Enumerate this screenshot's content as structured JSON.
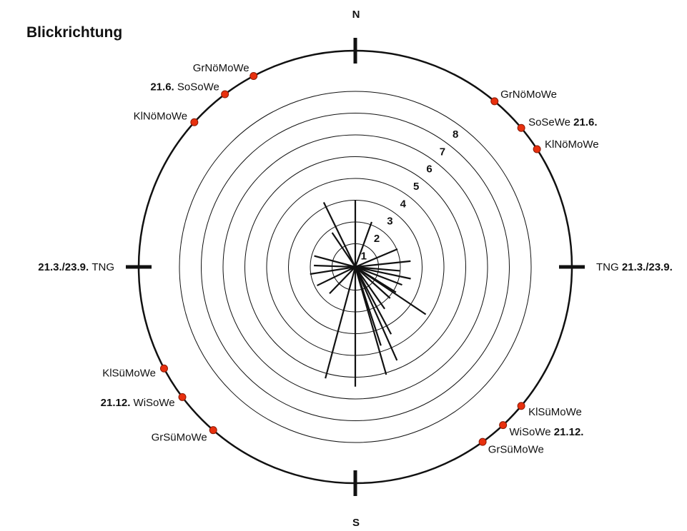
{
  "chart_data": {
    "type": "polar-rose",
    "title": "Blickrichtung",
    "compass": {
      "north": "N",
      "south": "S"
    },
    "ring_labels": [
      "1",
      "2",
      "3",
      "4",
      "5",
      "6",
      "7",
      "8"
    ],
    "rmax": 8,
    "rays": [
      {
        "bearing": 0,
        "length": 3.05
      },
      {
        "bearing": 20,
        "length": 2.2
      },
      {
        "bearing": 67,
        "length": 2.1
      },
      {
        "bearing": 84,
        "length": 2.55
      },
      {
        "bearing": 95,
        "length": 2.05
      },
      {
        "bearing": 102,
        "length": 2.6
      },
      {
        "bearing": 111,
        "length": 2.3
      },
      {
        "bearing": 122,
        "length": 2.2
      },
      {
        "bearing": 124,
        "length": 3.9
      },
      {
        "bearing": 132,
        "length": 2.15
      },
      {
        "bearing": 145,
        "length": 2.35
      },
      {
        "bearing": 152,
        "length": 3.5
      },
      {
        "bearing": 156,
        "length": 4.7
      },
      {
        "bearing": 162,
        "length": 3.8
      },
      {
        "bearing": 164,
        "length": 5.15
      },
      {
        "bearing": 180,
        "length": 5.5
      },
      {
        "bearing": 195,
        "length": 5.3
      },
      {
        "bearing": 224,
        "length": 1.7
      },
      {
        "bearing": 244,
        "length": 1.95
      },
      {
        "bearing": 261,
        "length": 2.1
      },
      {
        "bearing": 272,
        "length": 1.9
      },
      {
        "bearing": 285,
        "length": 1.95
      },
      {
        "bearing": 326,
        "length": 1.9
      },
      {
        "bearing": 334,
        "length": 3.3
      }
    ],
    "markers": [
      {
        "label": "TNG",
        "date": "21.3./23.9.",
        "bearing": 90,
        "date_side": "after"
      },
      {
        "label": "TNG",
        "date": "21.3./23.9.",
        "bearing": 270,
        "date_side": "before"
      },
      {
        "label": "GrNöMoWe",
        "bearing": 40,
        "dot": true
      },
      {
        "label": "SoSeWe",
        "date": "21.6.",
        "bearing": 50,
        "dot": true,
        "date_side": "after"
      },
      {
        "label": "KlNöMoWe",
        "bearing": 57,
        "dot": true
      },
      {
        "label": "GrNöMoWe",
        "bearing": 332,
        "dot": true
      },
      {
        "label": "SoSoWe",
        "date": "21.6.",
        "bearing": 323,
        "dot": true,
        "date_side": "before"
      },
      {
        "label": "KlNöMoWe",
        "bearing": 312,
        "dot": true
      },
      {
        "label": "KlSüMoWe",
        "bearing": 130,
        "dot": true
      },
      {
        "label": "WiSoWe",
        "date": "21.12.",
        "bearing": 137,
        "dot": true,
        "date_side": "after"
      },
      {
        "label": "GrSüMoWe",
        "bearing": 144,
        "dot": true
      },
      {
        "label": "KlSüMoWe",
        "bearing": 242,
        "dot": true
      },
      {
        "label": "WiSoWe",
        "date": "21.12.",
        "bearing": 233,
        "dot": true,
        "date_side": "before"
      },
      {
        "label": "GrSüMoWe",
        "bearing": 221,
        "dot": true
      }
    ],
    "colors": {
      "line": "#111111",
      "dot": "#e8300e",
      "dot_stroke": "#8a1a06",
      "background": "#ffffff"
    }
  }
}
